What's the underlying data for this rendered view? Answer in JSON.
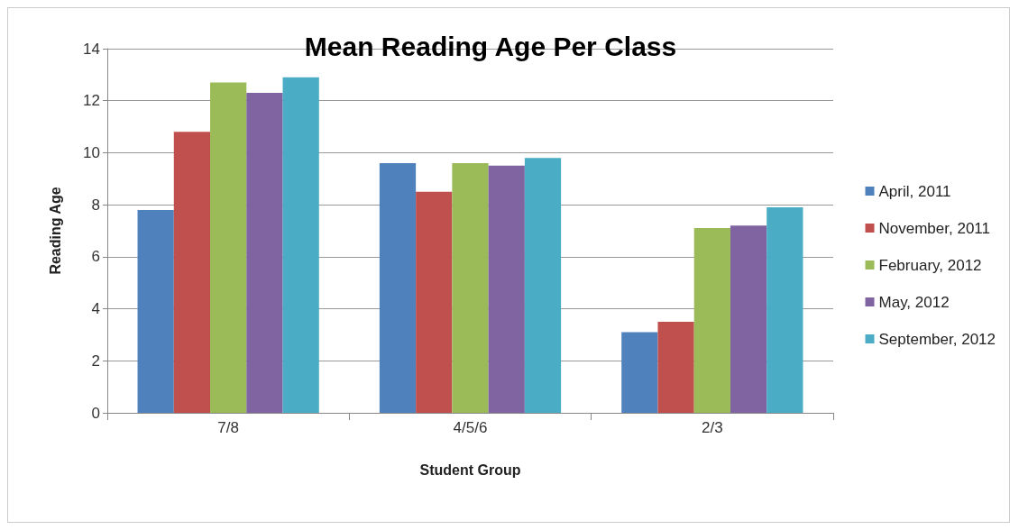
{
  "chart_data": {
    "type": "bar",
    "title": "Mean Reading Age Per Class",
    "xlabel": "Student Group",
    "ylabel": "Reading Age",
    "categories": [
      "7/8",
      "4/5/6",
      "2/3"
    ],
    "series": [
      {
        "name": "April, 2011",
        "color": "#4f81bd",
        "values": [
          7.8,
          9.6,
          3.1
        ]
      },
      {
        "name": "November, 2011",
        "color": "#c0504d",
        "values": [
          10.8,
          8.5,
          3.5
        ]
      },
      {
        "name": "February, 2012",
        "color": "#9bbb59",
        "values": [
          12.7,
          9.6,
          7.1
        ]
      },
      {
        "name": "May, 2012",
        "color": "#8064a2",
        "values": [
          12.3,
          9.5,
          7.2
        ]
      },
      {
        "name": "September, 2012",
        "color": "#4bacc6",
        "values": [
          12.9,
          9.8,
          7.9
        ]
      }
    ],
    "ylim": [
      0,
      14
    ],
    "yticks": [
      0,
      2,
      4,
      6,
      8,
      10,
      12,
      14
    ],
    "grid": "y",
    "legend": "right"
  }
}
